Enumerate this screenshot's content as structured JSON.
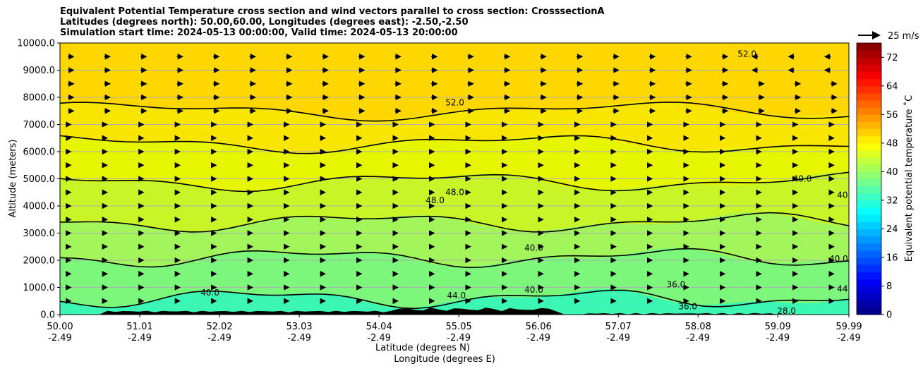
{
  "chart_data": {
    "type": "contour",
    "title_lines": [
      "Equivalent Potential Temperature cross section and wind vectors parallel to cross section: CrosssectionA",
      "Latitudes (degrees north): 50.00,60.00, Longitudes (degrees east): -2.50,-2.50",
      "Simulation start time: 2024-05-13 00:00:00, Valid time: 2024-05-13 20:00:00"
    ],
    "ylabel": "Altitude (meters)",
    "xlabel_lat": "Latitude (degrees N)",
    "xlabel_lon": "Longitude (degrees E)",
    "ylim": [
      0,
      10000
    ],
    "yticks": [
      {
        "value": 0,
        "label": "0.0"
      },
      {
        "value": 1000,
        "label": "1000.0"
      },
      {
        "value": 2000,
        "label": "2000.0"
      },
      {
        "value": 3000,
        "label": "3000.0"
      },
      {
        "value": 4000,
        "label": "4000.0"
      },
      {
        "value": 5000,
        "label": "5000.0"
      },
      {
        "value": 6000,
        "label": "6000.0"
      },
      {
        "value": 7000,
        "label": "7000.0"
      },
      {
        "value": 8000,
        "label": "8000.0"
      },
      {
        "value": 9000,
        "label": "9000.0"
      },
      {
        "value": 10000,
        "label": "10000.0"
      }
    ],
    "xlim": [
      50.0,
      59.99
    ],
    "xticks": [
      {
        "lat": 50.0,
        "label": "50.00",
        "lon": "-2.49"
      },
      {
        "lat": 51.01,
        "label": "51.01",
        "lon": "-2.49"
      },
      {
        "lat": 52.02,
        "label": "52.02",
        "lon": "-2.49"
      },
      {
        "lat": 53.03,
        "label": "53.03",
        "lon": "-2.49"
      },
      {
        "lat": 54.04,
        "label": "54.04",
        "lon": "-2.49"
      },
      {
        "lat": 55.05,
        "label": "55.05",
        "lon": "-2.49"
      },
      {
        "lat": 56.06,
        "label": "56.06",
        "lon": "-2.49"
      },
      {
        "lat": 57.07,
        "label": "57.07",
        "lon": "-2.49"
      },
      {
        "lat": 58.08,
        "label": "58.08",
        "lon": "-2.49"
      },
      {
        "lat": 59.09,
        "label": "59.09",
        "lon": "-2.49"
      },
      {
        "lat": 59.99,
        "label": "59.99",
        "lon": "-2.49"
      }
    ],
    "grid": true,
    "colorbar": {
      "label": "Equivalent potential temperature ˚C",
      "min": 0,
      "max": 76,
      "step": 2,
      "ticks": [
        0,
        8,
        16,
        24,
        32,
        40,
        48,
        56,
        64,
        72
      ]
    },
    "wind_key": {
      "label": "25 m/s"
    },
    "fill_bands": [
      {
        "theta": 50,
        "z_top": 10000,
        "z_bottom": 0,
        "color": "#ffd700"
      },
      {
        "theta": 49,
        "z_top": 7500,
        "color": "#f8e500"
      },
      {
        "theta": 47,
        "z_top": 6300,
        "color": "#e8f500"
      },
      {
        "theta": 45,
        "z_top": 4900,
        "color": "#c8f528"
      },
      {
        "theta": 43,
        "z_top": 3400,
        "color": "#a2f55a"
      },
      {
        "theta": 41,
        "z_top": 2100,
        "color": "#7cf77c"
      },
      {
        "theta": 38,
        "z_top": 600,
        "color": "#3cf7b4"
      }
    ],
    "contour_labels": [
      {
        "text": "52.0",
        "lat": 55.0,
        "z": 7700
      },
      {
        "text": "52.0",
        "lat": 58.7,
        "z": 9500
      },
      {
        "text": "48.0",
        "lat": 54.75,
        "z": 4100
      },
      {
        "text": "48.0",
        "lat": 55.0,
        "z": 4400
      },
      {
        "text": "40.0",
        "lat": 59.4,
        "z": 4900
      },
      {
        "text": "40.0",
        "lat": 59.96,
        "z": 4300
      },
      {
        "text": "40.0",
        "lat": 56.0,
        "z": 2350
      },
      {
        "text": "40.0",
        "lat": 59.86,
        "z": 1950
      },
      {
        "text": "40.0",
        "lat": 51.9,
        "z": 700
      },
      {
        "text": "44.0",
        "lat": 55.02,
        "z": 600
      },
      {
        "text": "40.0",
        "lat": 56.0,
        "z": 800
      },
      {
        "text": "36.0",
        "lat": 57.8,
        "z": 1000
      },
      {
        "text": "36.0",
        "lat": 57.95,
        "z": 200
      },
      {
        "text": "28.0",
        "lat": 59.2,
        "z": 30
      },
      {
        "text": "44.0",
        "lat": 59.96,
        "z": 850
      }
    ]
  }
}
